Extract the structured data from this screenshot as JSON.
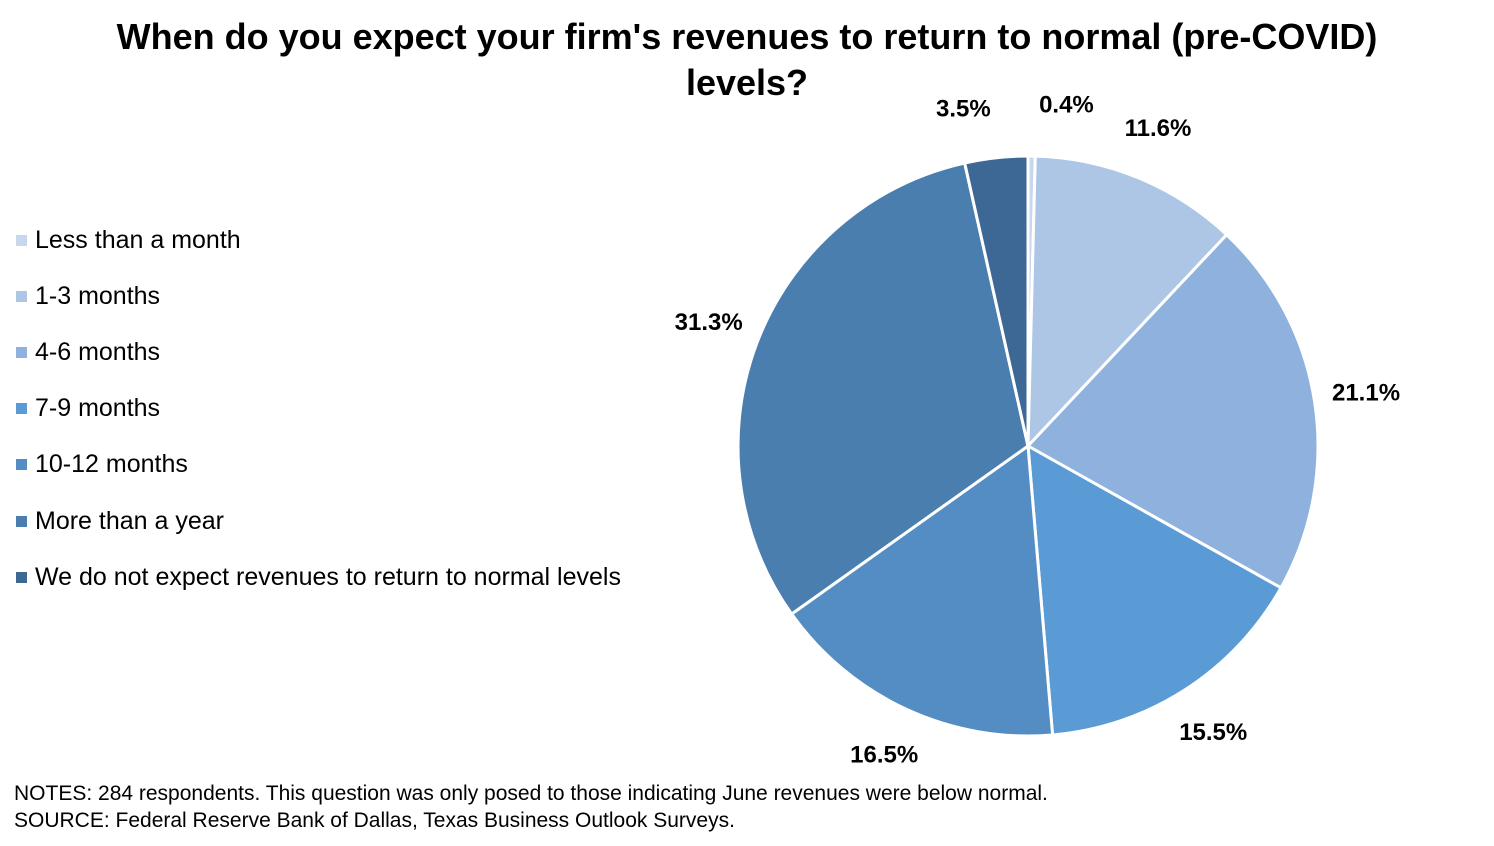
{
  "title_lines": [
    "When do you expect your firm's revenues to return to normal (pre-COVID)",
    "levels?"
  ],
  "notes": "NOTES: 284 respondents. This question was only posed to those indicating June revenues were below normal.",
  "source": "SOURCE: Federal Reserve Bank of Dallas, Texas Business Outlook Surveys.",
  "chart_data": {
    "type": "pie",
    "title": "When do you expect your firm's revenues to return to normal (pre-COVID) levels?",
    "categories": [
      "Less than a month",
      "1-3 months",
      "4-6 months",
      "7-9 months",
      "10-12 months",
      "More than a year",
      "We do not expect revenues to return to normal levels"
    ],
    "values": [
      0.4,
      11.6,
      21.1,
      15.5,
      16.5,
      31.3,
      3.5
    ],
    "labels": [
      "0.4%",
      "11.6%",
      "21.1%",
      "15.5%",
      "16.5%",
      "31.3%",
      "3.5%"
    ],
    "colors": [
      "#C8D7EC",
      "#ADC6E6",
      "#8EB1DD",
      "#5B9BD5",
      "#538DC4",
      "#4A7EAE",
      "#3D6895"
    ],
    "legend_position": "left"
  }
}
